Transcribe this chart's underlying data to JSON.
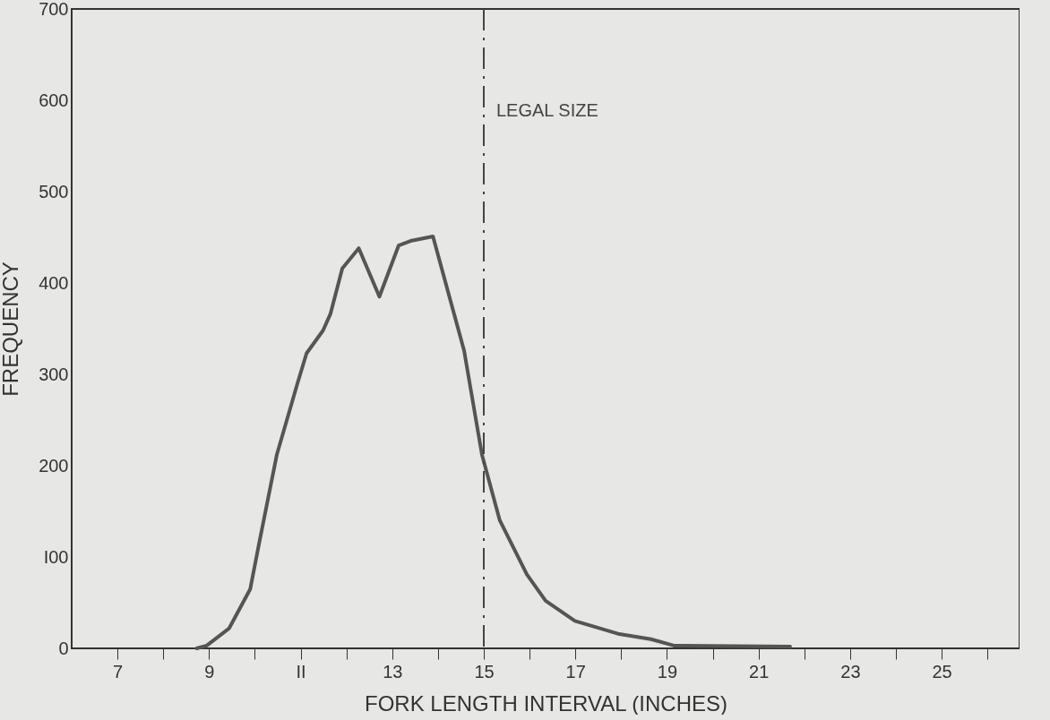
{
  "chart_data": {
    "type": "line",
    "xlabel": "FORK LENGTH INTERVAL (INCHES)",
    "ylabel": "FREQUENCY",
    "x": [
      8.73,
      8.95,
      9.44,
      9.9,
      10.09,
      10.48,
      10.93,
      11.13,
      11.49,
      11.65,
      11.91,
      12.27,
      12.72,
      13.14,
      13.4,
      13.89,
      14.57,
      14.96,
      15.35,
      15.94,
      16.35,
      16.99,
      17.93,
      18.65,
      19.15,
      21.69
    ],
    "series": [
      {
        "color": "#555555",
        "values": [
          0,
          3,
          22,
          65,
          114,
          212,
          290,
          323,
          348,
          366,
          416,
          438,
          385,
          441,
          446,
          451,
          326,
          212,
          140,
          81,
          52,
          30,
          16,
          10,
          3,
          2
        ]
      }
    ],
    "xlim": [
      6,
      26.7
    ],
    "xticks": [
      7,
      {
        "value": 8,
        "label": null
      },
      9,
      {
        "value": 10,
        "label": null
      },
      {
        "value": 11,
        "label": "II"
      },
      {
        "value": 12,
        "label": null
      },
      13,
      {
        "value": 14,
        "label": null
      },
      15,
      {
        "value": 16,
        "label": null
      },
      17,
      {
        "value": 18,
        "label": null
      },
      19,
      {
        "value": 20,
        "label": null
      },
      21,
      {
        "value": 22,
        "label": null
      },
      23,
      {
        "value": 24,
        "label": null
      },
      25,
      {
        "value": 26,
        "label": null
      }
    ],
    "ylim": [
      0,
      700
    ],
    "yticks": [
      0,
      {
        "value": 100,
        "label": "I00"
      },
      200,
      300,
      400,
      500,
      600,
      700
    ],
    "ref_lines": [
      {
        "axis": "x",
        "value": 15,
        "label": "LEGAL SIZE",
        "color": "#444444",
        "line_style": "dashdot"
      }
    ],
    "marker": "none",
    "line_style": "solid",
    "grid": false
  }
}
